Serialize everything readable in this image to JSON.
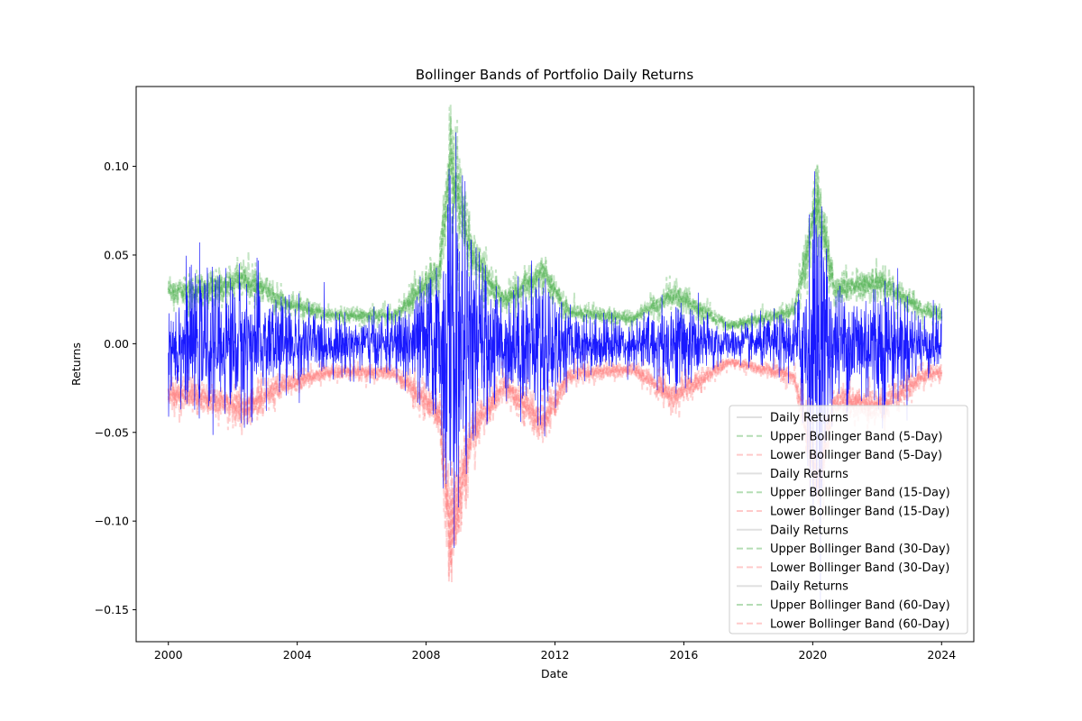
{
  "chart_data": {
    "type": "line",
    "title": "Bollinger Bands of Portfolio Daily Returns",
    "xlabel": "Date",
    "ylabel": "Returns",
    "xlim": [
      "1999-01-01",
      "2025-01-01"
    ],
    "ylim": [
      -0.168,
      0.145
    ],
    "x_ticks": [
      "2000",
      "2004",
      "2008",
      "2012",
      "2016",
      "2020",
      "2024"
    ],
    "y_ticks": [
      "0.10",
      "0.05",
      "0.00",
      "−0.05",
      "−0.10",
      "−0.15"
    ],
    "y_tick_values": [
      0.1,
      0.05,
      0.0,
      -0.05,
      -0.1,
      -0.15
    ],
    "grid": false,
    "legend_position": "lower-right",
    "colors": {
      "daily_returns": "#0000ff",
      "upper_band": "#2ca02c",
      "lower_band": "#ff6b6b"
    },
    "legend": [
      "Daily Returns",
      "Upper Bollinger Band (5-Day)",
      "Lower Bollinger Band (5-Day)",
      "Daily Returns",
      "Upper Bollinger Band (15-Day)",
      "Lower Bollinger Band (15-Day)",
      "Daily Returns",
      "Upper Bollinger Band (30-Day)",
      "Lower Bollinger Band (30-Day)",
      "Daily Returns",
      "Upper Bollinger Band (60-Day)",
      "Lower Bollinger Band (60-Day)"
    ],
    "series": [
      {
        "kind": "returns",
        "amplitude_envelope": [
          [
            "2000-01",
            0.02
          ],
          [
            "2001-01",
            0.024
          ],
          [
            "2002-06",
            0.026
          ],
          [
            "2003-06",
            0.018
          ],
          [
            "2005-01",
            0.01
          ],
          [
            "2007-01",
            0.011
          ],
          [
            "2008-06",
            0.03
          ],
          [
            "2008-10",
            0.075
          ],
          [
            "2009-06",
            0.035
          ],
          [
            "2010-06",
            0.018
          ],
          [
            "2011-09",
            0.03
          ],
          [
            "2012-06",
            0.012
          ],
          [
            "2014-06",
            0.009
          ],
          [
            "2015-09",
            0.018
          ],
          [
            "2017-06",
            0.006
          ],
          [
            "2019-06",
            0.012
          ],
          [
            "2020-03",
            0.065
          ],
          [
            "2020-09",
            0.02
          ],
          [
            "2022-03",
            0.025
          ],
          [
            "2023-06",
            0.012
          ],
          [
            "2024-01",
            0.012
          ]
        ]
      },
      {
        "kind": "upper",
        "center": [
          [
            "2000-01",
            0.03
          ],
          [
            "2001-01",
            0.03
          ],
          [
            "2002-06",
            0.036
          ],
          [
            "2003-06",
            0.024
          ],
          [
            "2005-01",
            0.016
          ],
          [
            "2007-01",
            0.016
          ],
          [
            "2008-06",
            0.04
          ],
          [
            "2008-10",
            0.105
          ],
          [
            "2009-06",
            0.05
          ],
          [
            "2010-06",
            0.024
          ],
          [
            "2011-09",
            0.04
          ],
          [
            "2012-06",
            0.018
          ],
          [
            "2014-06",
            0.014
          ],
          [
            "2015-09",
            0.028
          ],
          [
            "2017-06",
            0.01
          ],
          [
            "2019-06",
            0.018
          ],
          [
            "2020-03",
            0.08
          ],
          [
            "2020-09",
            0.03
          ],
          [
            "2022-03",
            0.035
          ],
          [
            "2023-06",
            0.018
          ],
          [
            "2024-01",
            0.017
          ]
        ]
      },
      {
        "kind": "lower",
        "center": [
          [
            "2000-01",
            -0.028
          ],
          [
            "2001-01",
            -0.03
          ],
          [
            "2002-06",
            -0.036
          ],
          [
            "2003-06",
            -0.024
          ],
          [
            "2005-01",
            -0.016
          ],
          [
            "2007-01",
            -0.016
          ],
          [
            "2008-06",
            -0.04
          ],
          [
            "2008-10",
            -0.11
          ],
          [
            "2009-06",
            -0.05
          ],
          [
            "2010-06",
            -0.024
          ],
          [
            "2011-09",
            -0.045
          ],
          [
            "2012-06",
            -0.018
          ],
          [
            "2014-06",
            -0.014
          ],
          [
            "2015-09",
            -0.03
          ],
          [
            "2017-06",
            -0.01
          ],
          [
            "2019-06",
            -0.018
          ],
          [
            "2020-03",
            -0.08
          ],
          [
            "2020-09",
            -0.03
          ],
          [
            "2022-03",
            -0.035
          ],
          [
            "2023-06",
            -0.018
          ],
          [
            "2024-01",
            -0.016
          ]
        ]
      }
    ]
  }
}
